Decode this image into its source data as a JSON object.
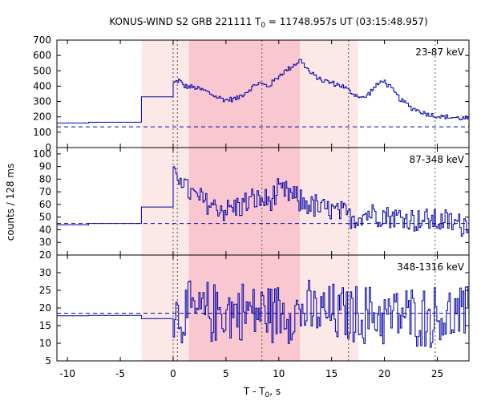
{
  "chart_data": {
    "type": "line",
    "title": "KONUS-WIND S2 GRB 221111 T",
    "title_sub": "0",
    "title_rest": " = 11748.957s UT (03:15:48.957)",
    "xlabel": "T - T",
    "xlabel_sub": "0",
    "xlabel_rest": ", s",
    "ylabel": "counts / 128 ms",
    "xlim": [
      -11,
      28
    ],
    "xticks": [
      -10,
      -5,
      0,
      5,
      10,
      15,
      20,
      25
    ],
    "shaded_regions": [
      {
        "from": -3.0,
        "to": 17.5,
        "color": "#fde8e8"
      },
      {
        "from": 1.5,
        "to": 12.0,
        "color": "#f9c7cf"
      }
    ],
    "vertical_lines": [
      0.0,
      0.4,
      8.4,
      16.6,
      24.8
    ],
    "colors": {
      "series": "#0000aa",
      "background_dashed": "#0000aa",
      "vlines": "#555555"
    },
    "panels": [
      {
        "label": "23-87 keV",
        "ylim": [
          0,
          700
        ],
        "yticks": [
          0,
          100,
          200,
          300,
          400,
          500,
          600,
          700
        ],
        "background": 135,
        "pre_steps": [
          [
            -11,
            160
          ],
          [
            -8,
            165
          ],
          [
            -3,
            330
          ],
          [
            -0.5,
            330
          ]
        ],
        "post_steps": [
          [
            0.0,
            420
          ],
          [
            0.5,
            440
          ],
          [
            1.0,
            400
          ],
          [
            2.0,
            390
          ],
          [
            3.0,
            370
          ],
          [
            4.0,
            330
          ],
          [
            5.0,
            310
          ],
          [
            6.0,
            320
          ],
          [
            7.0,
            370
          ],
          [
            8.0,
            420
          ],
          [
            9.0,
            400
          ],
          [
            10.0,
            470
          ],
          [
            11.0,
            520
          ],
          [
            12.0,
            570
          ],
          [
            13.0,
            480
          ],
          [
            14.0,
            440
          ],
          [
            15.0,
            420
          ],
          [
            16.0,
            400
          ],
          [
            17.0,
            350
          ],
          [
            18.0,
            320
          ],
          [
            19.0,
            390
          ],
          [
            19.8,
            440
          ],
          [
            20.5,
            390
          ],
          [
            21.5,
            310
          ],
          [
            22.5,
            260
          ],
          [
            23.5,
            230
          ],
          [
            24.5,
            210
          ],
          [
            25.5,
            200
          ],
          [
            26.5,
            195
          ],
          [
            27.5,
            190
          ]
        ],
        "noise": 20
      },
      {
        "label": "87-348 keV",
        "ylim": [
          20,
          105
        ],
        "yticks": [
          20,
          30,
          40,
          50,
          60,
          70,
          80,
          90,
          100
        ],
        "background": 45,
        "pre_steps": [
          [
            -11,
            44
          ],
          [
            -8,
            45
          ],
          [
            -3,
            58
          ],
          [
            -0.5,
            58
          ]
        ],
        "post_steps": [
          [
            0.0,
            80
          ],
          [
            0.6,
            85
          ],
          [
            1.2,
            72
          ],
          [
            2.0,
            66
          ],
          [
            3.0,
            62
          ],
          [
            4.0,
            58
          ],
          [
            5.0,
            56
          ],
          [
            6.0,
            58
          ],
          [
            7.0,
            62
          ],
          [
            8.0,
            64
          ],
          [
            9.0,
            62
          ],
          [
            10.0,
            70
          ],
          [
            11.0,
            68
          ],
          [
            12.0,
            62
          ],
          [
            13.0,
            60
          ],
          [
            14.0,
            56
          ],
          [
            15.0,
            55
          ],
          [
            16.0,
            52
          ],
          [
            17.0,
            50
          ],
          [
            18.0,
            52
          ],
          [
            19.0,
            54
          ],
          [
            20.0,
            52
          ],
          [
            21.0,
            50
          ],
          [
            22.0,
            49
          ],
          [
            23.0,
            48
          ],
          [
            24.0,
            48
          ],
          [
            25.0,
            47
          ],
          [
            26.0,
            46
          ],
          [
            27.0,
            45
          ]
        ],
        "noise": 12
      },
      {
        "label": "348-1316 keV",
        "ylim": [
          5,
          35
        ],
        "yticks": [
          5,
          10,
          15,
          20,
          25,
          30
        ],
        "background": 18.5,
        "pre_steps": [
          [
            -11,
            17.8
          ],
          [
            -8,
            17.9
          ],
          [
            -3,
            17.0
          ],
          [
            -0.5,
            17.0
          ]
        ],
        "post_steps": [
          [
            0.0,
            18
          ],
          [
            2.0,
            18.5
          ],
          [
            5.0,
            19
          ],
          [
            8.0,
            19
          ],
          [
            11.0,
            19
          ],
          [
            14.0,
            18.5
          ],
          [
            17.0,
            18
          ],
          [
            20.0,
            18
          ],
          [
            24.0,
            17.5
          ],
          [
            27.0,
            17.5
          ]
        ],
        "noise": 10
      }
    ]
  }
}
